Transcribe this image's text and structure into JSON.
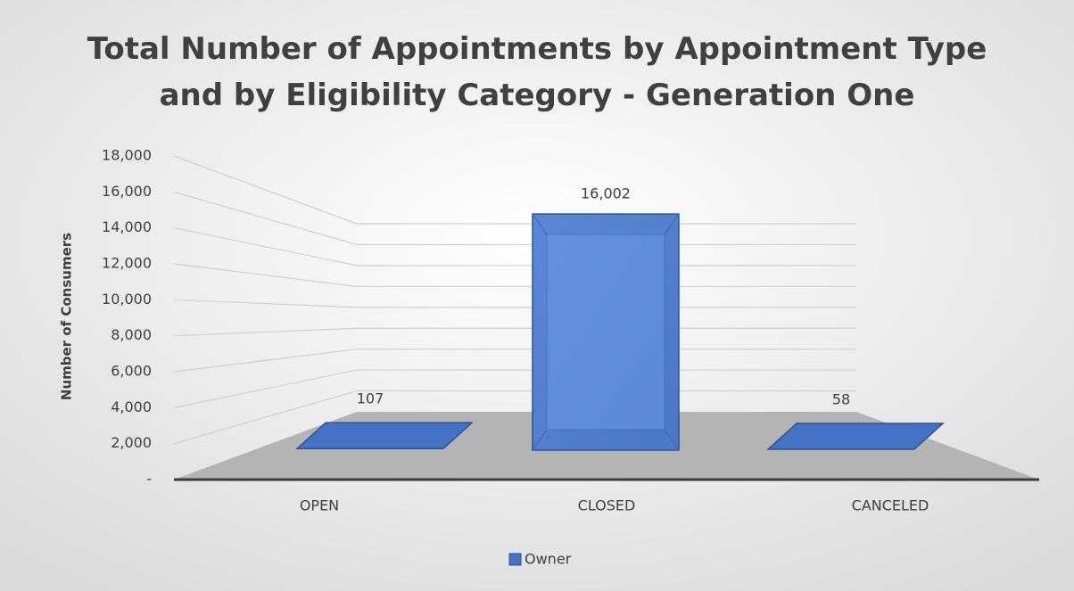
{
  "chart_data": {
    "type": "bar3d",
    "title": "Total Number of Appointments by Appointment Type and by Eligibility Category - Generation One",
    "y_label": "Number of Consumers",
    "categories": [
      "OPEN",
      "CLOSED",
      "CANCELED"
    ],
    "series": [
      {
        "name": "Owner",
        "color": "#4472c4",
        "values": [
          107,
          16002,
          58
        ],
        "value_labels": [
          "107",
          "16,002",
          "58"
        ]
      }
    ],
    "ylim": [
      0,
      18000
    ],
    "yticks": [
      {
        "value": 0,
        "label": "-"
      },
      {
        "value": 2000,
        "label": "2,000"
      },
      {
        "value": 4000,
        "label": "4,000"
      },
      {
        "value": 6000,
        "label": "6,000"
      },
      {
        "value": 8000,
        "label": "8,000"
      },
      {
        "value": 10000,
        "label": "10,000"
      },
      {
        "value": 12000,
        "label": "12,000"
      },
      {
        "value": 14000,
        "label": "14,000"
      },
      {
        "value": 16000,
        "label": "16,000"
      },
      {
        "value": 18000,
        "label": "18,000"
      }
    ],
    "grid": true,
    "legend": "bottom"
  }
}
